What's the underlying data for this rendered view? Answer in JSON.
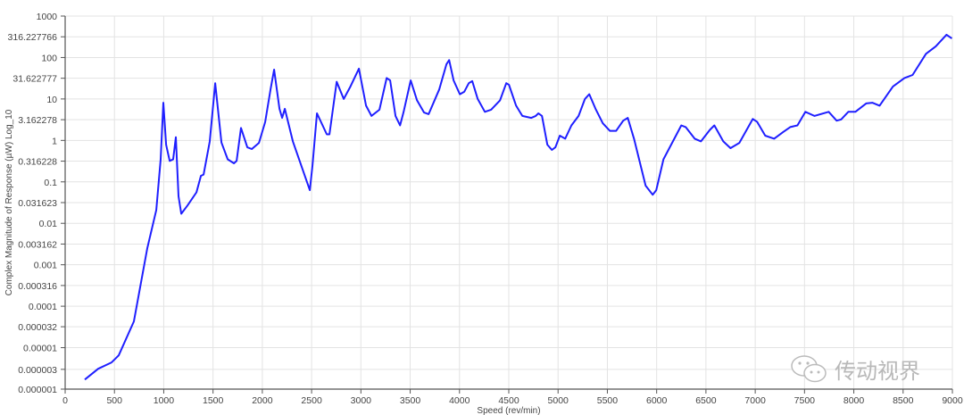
{
  "chart_data": {
    "type": "line",
    "title": "",
    "xlabel": "Speed (rev/min)",
    "ylabel": "Complex Magnitude of Response  (µW) Log_10",
    "xlim": [
      0,
      9000
    ],
    "ylim": [
      1e-06,
      1000
    ],
    "yscale": "log",
    "grid": true,
    "line_color": "#1f1fff",
    "x_ticks": [
      "0",
      "500",
      "1000",
      "1500",
      "2000",
      "2500",
      "3000",
      "3500",
      "4000",
      "4500",
      "5000",
      "5500",
      "6000",
      "6500",
      "7000",
      "7500",
      "8000",
      "8500",
      "9000"
    ],
    "y_ticks": [
      {
        "value": 1000,
        "label": "1000"
      },
      {
        "value": 316.227766,
        "label": "316.227766"
      },
      {
        "value": 100,
        "label": "100"
      },
      {
        "value": 31.622777,
        "label": "31.622777"
      },
      {
        "value": 10,
        "label": "10"
      },
      {
        "value": 3.162278,
        "label": "3.162278"
      },
      {
        "value": 1,
        "label": "1"
      },
      {
        "value": 0.316228,
        "label": "0.316228"
      },
      {
        "value": 0.1,
        "label": "0.1"
      },
      {
        "value": 0.031623,
        "label": "0.031623"
      },
      {
        "value": 0.01,
        "label": "0.01"
      },
      {
        "value": 0.003162,
        "label": "0.003162"
      },
      {
        "value": 0.001,
        "label": "0.001"
      },
      {
        "value": 0.000316,
        "label": "0.000316"
      },
      {
        "value": 0.0001,
        "label": "0.0001"
      },
      {
        "value": 3.2e-05,
        "label": "0.000032"
      },
      {
        "value": 1e-05,
        "label": "0.00001"
      },
      {
        "value": 3e-06,
        "label": "0.000003"
      },
      {
        "value": 1e-06,
        "label": "0.000001"
      }
    ],
    "x": [
      199,
      335,
      471,
      543,
      697,
      833,
      924,
      969,
      996,
      1024,
      1060,
      1096,
      1123,
      1150,
      1178,
      1241,
      1332,
      1377,
      1404,
      1467,
      1522,
      1585,
      1649,
      1712,
      1739,
      1784,
      1848,
      1893,
      1966,
      2029,
      2083,
      2120,
      2174,
      2201,
      2228,
      2310,
      2482,
      2509,
      2554,
      2654,
      2681,
      2754,
      2826,
      2889,
      2980,
      3052,
      3107,
      3188,
      3261,
      3297,
      3351,
      3397,
      3433,
      3505,
      3569,
      3641,
      3687,
      3795,
      3868,
      3895,
      3940,
      4004,
      4049,
      4094,
      4130,
      4185,
      4257,
      4321,
      4411,
      4475,
      4502,
      4574,
      4638,
      4728,
      4773,
      4801,
      4837,
      4891,
      4937,
      4973,
      5018,
      5072,
      5136,
      5208,
      5272,
      5317,
      5380,
      5453,
      5525,
      5589,
      5661,
      5707,
      5770,
      5888,
      5960,
      5996,
      6069,
      6250,
      6295,
      6386,
      6449,
      6540,
      6585,
      6676,
      6749,
      6839,
      6975,
      7020,
      7101,
      7192,
      7283,
      7355,
      7428,
      7509,
      7600,
      7745,
      7826,
      7871,
      7944,
      8016,
      8125,
      8188,
      8261,
      8397,
      8514,
      8596,
      8732,
      8832,
      8940,
      8995
    ],
    "y": [
      1.7e-06,
      3.1e-06,
      4.4e-06,
      6.5e-06,
      4.3e-05,
      0.0025,
      0.021,
      0.35,
      8.1,
      0.79,
      0.32,
      0.35,
      1.2,
      0.045,
      0.017,
      0.027,
      0.056,
      0.14,
      0.15,
      0.95,
      24,
      0.89,
      0.35,
      0.28,
      0.32,
      2.0,
      0.68,
      0.62,
      0.87,
      2.8,
      17,
      51,
      5.8,
      3.5,
      5.8,
      0.95,
      0.063,
      0.25,
      4.5,
      1.4,
      1.4,
      26,
      10,
      19,
      54,
      6.9,
      3.9,
      5.5,
      32,
      28,
      3.9,
      2.3,
      4.9,
      28,
      9.3,
      4.7,
      4.3,
      17,
      69,
      87,
      28,
      13,
      15,
      24,
      27,
      10,
      4.9,
      5.5,
      9.3,
      24,
      22,
      6.9,
      3.9,
      3.5,
      3.9,
      4.5,
      3.9,
      0.79,
      0.59,
      0.68,
      1.3,
      1.1,
      2.3,
      3.9,
      10,
      13,
      5.8,
      2.6,
      1.7,
      1.7,
      3.0,
      3.5,
      1.1,
      0.081,
      0.049,
      0.063,
      0.35,
      2.3,
      2.1,
      1.1,
      0.95,
      1.8,
      2.3,
      0.95,
      0.65,
      0.87,
      3.3,
      2.8,
      1.3,
      1.1,
      1.6,
      2.1,
      2.3,
      4.9,
      3.9,
      4.9,
      3.0,
      3.2,
      4.9,
      4.9,
      7.8,
      8.1,
      6.9,
      20,
      32,
      38,
      123,
      186,
      355,
      288
    ]
  },
  "watermark": {
    "text": "传动视界",
    "icon": "wechat-icon"
  }
}
